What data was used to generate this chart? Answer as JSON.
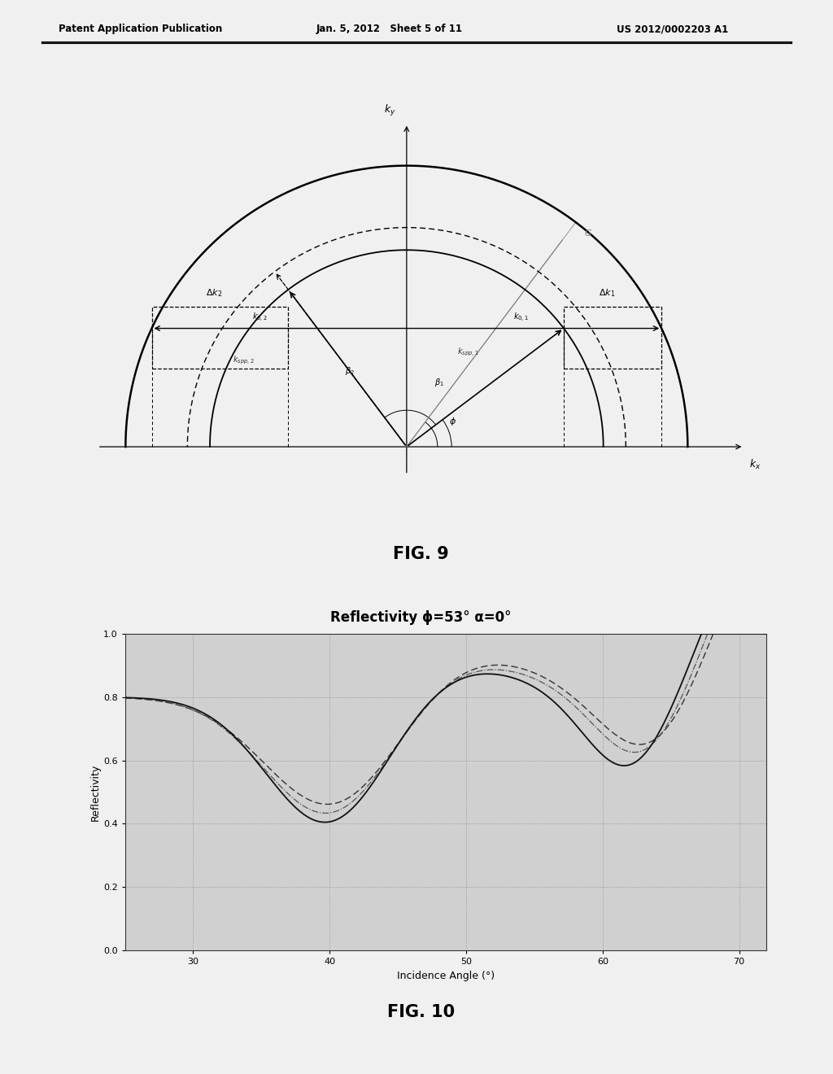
{
  "header_left": "Patent Application Publication",
  "header_center": "Jan. 5, 2012   Sheet 5 of 11",
  "header_right": "US 2012/0002203 A1",
  "fig9_label": "FIG. 9",
  "fig10_label": "FIG. 10",
  "fig10_title": "Reflectivity ϕ=53° α=0°",
  "fig10_xlabel": "Incidence Angle (°)",
  "fig10_ylabel": "Reflectivity",
  "fig10_xlim": [
    25,
    72
  ],
  "fig10_ylim": [
    0.0,
    1.0
  ],
  "fig10_xticks": [
    30,
    40,
    50,
    60,
    70
  ],
  "fig10_yticks": [
    0.0,
    0.2,
    0.4,
    0.6,
    0.8,
    1.0
  ],
  "page_bg": "#f0f0f0",
  "diagram_bg": "#dcdcdc",
  "plot_bg": "#d0d0d0"
}
